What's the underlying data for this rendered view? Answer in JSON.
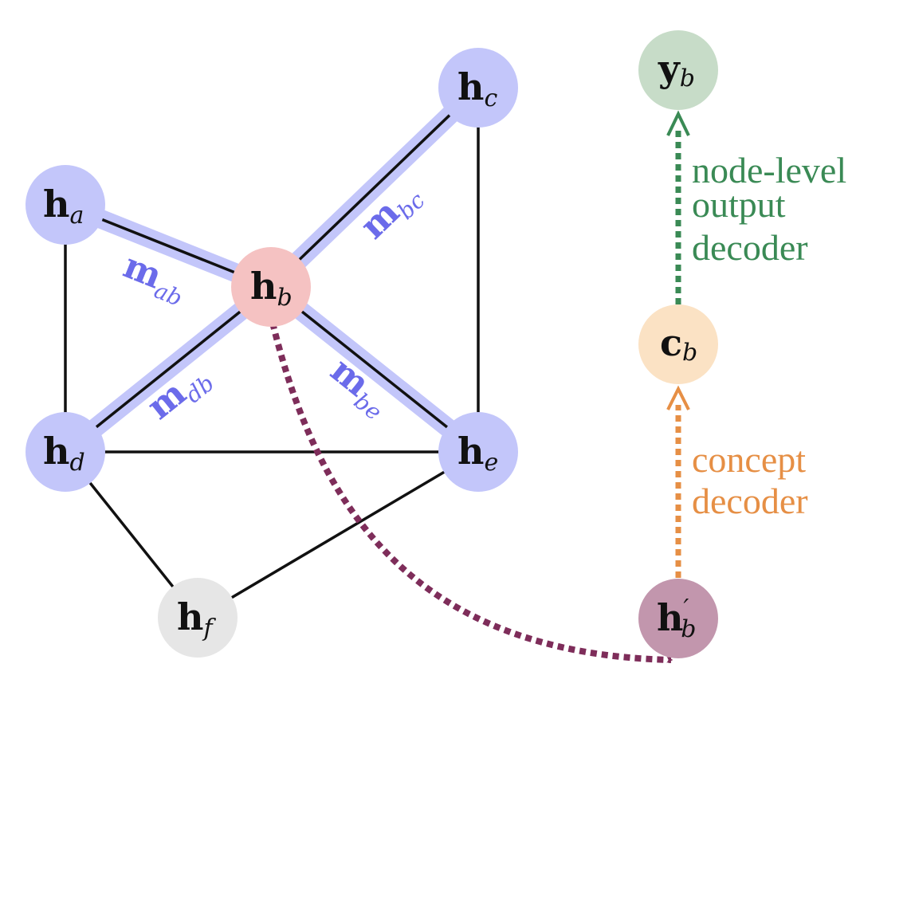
{
  "colors": {
    "node_blue": "#c3c6fa",
    "node_center": "#f5c2c2",
    "node_gray": "#e6e6e6",
    "node_output": "#c7dcc8",
    "node_concept": "#fbe2c4",
    "node_updated": "#c296ad",
    "edge_highlight": "#c3c6fa",
    "message_text": "#6b6bea",
    "arrow_purple": "#7e2d5a",
    "arrow_orange": "#e68f45",
    "arrow_green": "#3a8a55",
    "edge_black": "#111111"
  },
  "nodes": {
    "ha": {
      "base": "h",
      "sub": "a"
    },
    "hb": {
      "base": "h",
      "sub": "b"
    },
    "hc": {
      "base": "h",
      "sub": "c"
    },
    "hd": {
      "base": "h",
      "sub": "d"
    },
    "he": {
      "base": "h",
      "sub": "e"
    },
    "hf": {
      "base": "h",
      "sub": "f"
    },
    "yb": {
      "base": "y",
      "sub": "b"
    },
    "cb": {
      "base": "c",
      "sub": "b"
    },
    "hbp": {
      "base": "h",
      "prime": "′",
      "sub": "b"
    }
  },
  "messages": {
    "mab": {
      "base": "m",
      "sub": "ab"
    },
    "mbc": {
      "base": "m",
      "sub": "bc"
    },
    "mdb": {
      "base": "m",
      "sub": "db"
    },
    "mbe": {
      "base": "m",
      "sub": "be"
    }
  },
  "decoders": {
    "node_output": [
      "node-level",
      "output",
      "decoder"
    ],
    "concept": [
      "concept",
      "decoder"
    ]
  }
}
